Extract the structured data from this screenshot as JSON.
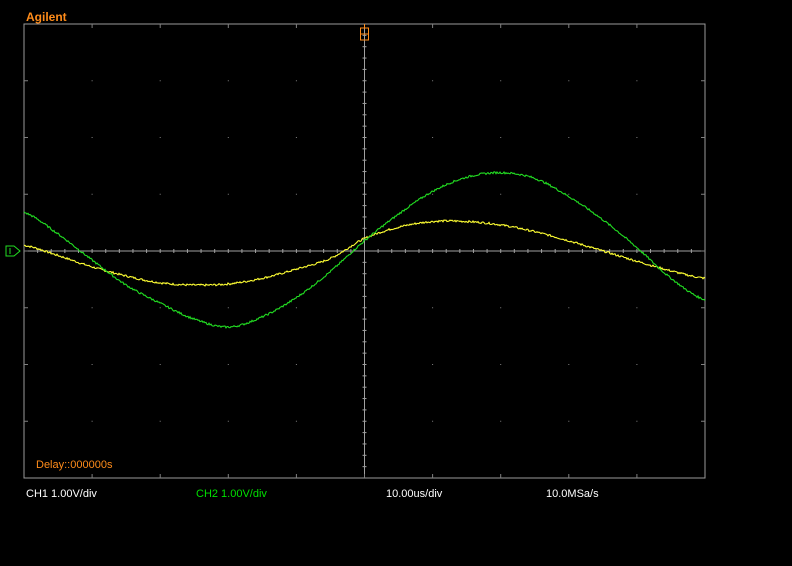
{
  "brand": "Agilent",
  "delay_text": "Delay::000000s",
  "readouts": {
    "ch1": "CH1 1.00V/div",
    "ch2": "CH2 1.00V/div",
    "timebase": "10.00us/div",
    "sample_rate": "10.0MSa/s"
  },
  "colors": {
    "grid": "#808080",
    "ch1": "#ffff33",
    "ch2": "#22dd22",
    "brand": "#ff8c1a"
  },
  "chart_data": {
    "type": "line",
    "x_range_us": [
      -50,
      50
    ],
    "y_range_div": [
      -4,
      4
    ],
    "grid": true,
    "series": [
      {
        "name": "CH1",
        "color": "#ffff33",
        "x_us": [
          -50,
          -45,
          -40,
          -35,
          -30,
          -25,
          -20,
          -15,
          -10,
          -5,
          0,
          5,
          10,
          15,
          20,
          25,
          30,
          35,
          40,
          45,
          50
        ],
        "y_div": [
          0.1,
          -0.08,
          -0.28,
          -0.44,
          -0.56,
          -0.6,
          -0.58,
          -0.48,
          -0.32,
          -0.13,
          0.22,
          0.42,
          0.52,
          0.52,
          0.46,
          0.34,
          0.18,
          0.0,
          -0.18,
          -0.35,
          -0.48
        ]
      },
      {
        "name": "CH2",
        "color": "#22dd22",
        "x_us": [
          -50,
          -45,
          -40,
          -35,
          -30,
          -25,
          -20,
          -15,
          -10,
          -5,
          0,
          5,
          10,
          15,
          20,
          25,
          30,
          35,
          40,
          45,
          50
        ],
        "y_div": [
          0.68,
          0.3,
          -0.16,
          -0.6,
          -0.92,
          -1.2,
          -1.34,
          -1.16,
          -0.82,
          -0.36,
          0.18,
          0.65,
          1.05,
          1.3,
          1.38,
          1.28,
          0.96,
          0.55,
          0.06,
          -0.48,
          -0.86
        ]
      }
    ]
  }
}
